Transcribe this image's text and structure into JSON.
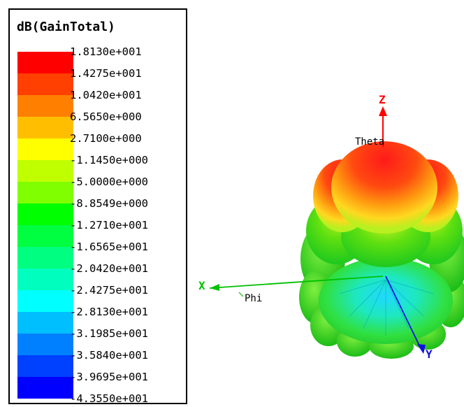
{
  "chart_data": {
    "type": "heatmap",
    "title": "dB(GainTotal)",
    "colorbar": {
      "labels": [
        "1.8130e+001",
        "1.4275e+001",
        "1.0420e+001",
        "6.5650e+000",
        "2.7100e+000",
        "-1.1450e+000",
        "-5.0000e+000",
        "-8.8549e+000",
        "-1.2710e+001",
        "-1.6565e+001",
        "-2.0420e+001",
        "-2.4275e+001",
        "-2.8130e+001",
        "-3.1985e+001",
        "-3.5840e+001",
        "-3.9695e+001",
        "-4.3550e+001"
      ],
      "values": [
        18.13,
        14.275,
        10.42,
        6.565,
        2.71,
        -1.145,
        -5.0,
        -8.8549,
        -12.71,
        -16.565,
        -20.42,
        -24.275,
        -28.13,
        -31.985,
        -35.84,
        -39.695,
        -43.55
      ],
      "colors": [
        "#ff0000",
        "#ff4000",
        "#ff8000",
        "#ffbf00",
        "#ffff00",
        "#bfff00",
        "#80ff00",
        "#00ff00",
        "#00ff40",
        "#00ff80",
        "#00ffbf",
        "#00ffff",
        "#00bfff",
        "#0080ff",
        "#0040ff",
        "#0000ff"
      ]
    },
    "axes": {
      "x_label": "X",
      "y_label": "Y",
      "z_label": "Z",
      "phi_label": "Phi",
      "theta_label": "Theta"
    },
    "axis_colors": {
      "x": "#00c000",
      "y": "#0000ff",
      "z": "#ff0000"
    }
  }
}
